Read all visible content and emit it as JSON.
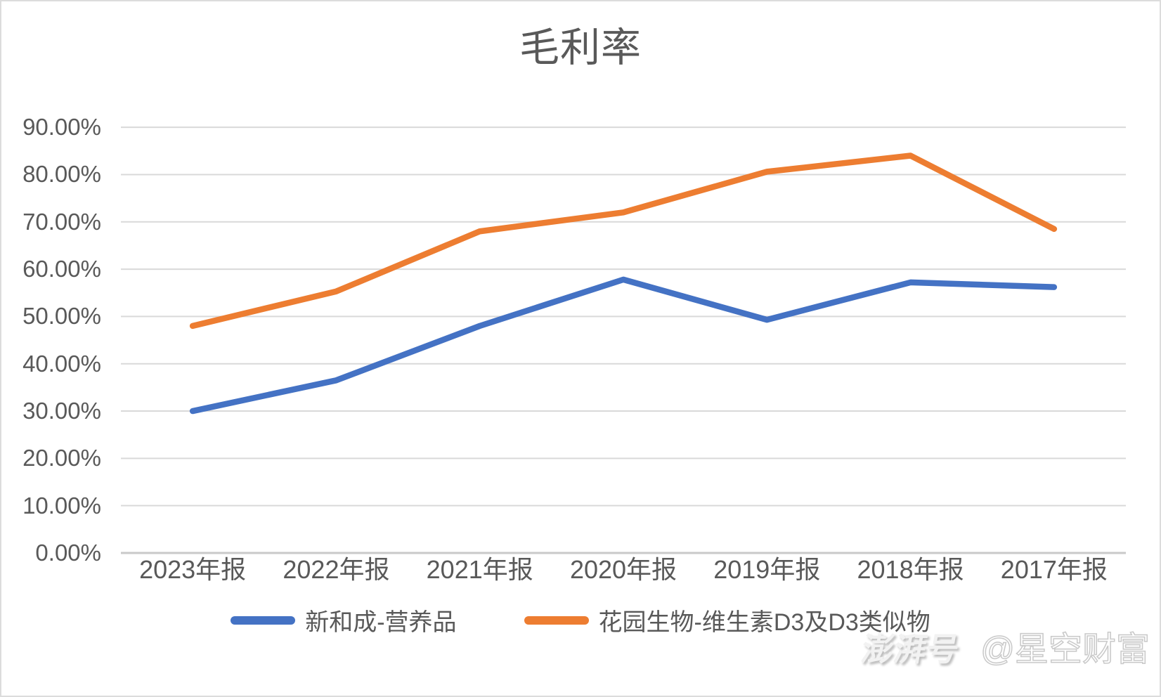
{
  "title": "毛利率",
  "watermark": {
    "brand": "澎湃号",
    "account": "@星空财富"
  },
  "colors": {
    "series_blue": "#4472C4",
    "series_orange": "#ED7D31",
    "gridline": "#D9D9D9",
    "axis_line": "#C9C9C9",
    "text": "#595959"
  },
  "chart_data": {
    "type": "line",
    "title": "毛利率",
    "categories": [
      "2023年报",
      "2022年报",
      "2021年报",
      "2020年报",
      "2019年报",
      "2018年报",
      "2017年报"
    ],
    "series": [
      {
        "name": "新和成-营养品",
        "color": "#4472C4",
        "values": [
          30.0,
          36.5,
          48.0,
          57.8,
          49.3,
          57.2,
          56.2
        ]
      },
      {
        "name": "花园生物-维生素D3及D3类似物",
        "color": "#ED7D31",
        "values": [
          48.0,
          55.3,
          68.0,
          72.0,
          80.6,
          84.0,
          68.5
        ]
      }
    ],
    "xlabel": "",
    "ylabel": "",
    "ylim": [
      0,
      90
    ],
    "ytick_step": 10,
    "ytick_labels": [
      "0.00%",
      "10.00%",
      "20.00%",
      "30.00%",
      "40.00%",
      "50.00%",
      "60.00%",
      "70.00%",
      "80.00%",
      "90.00%"
    ],
    "grid": true,
    "legend_position": "bottom"
  }
}
